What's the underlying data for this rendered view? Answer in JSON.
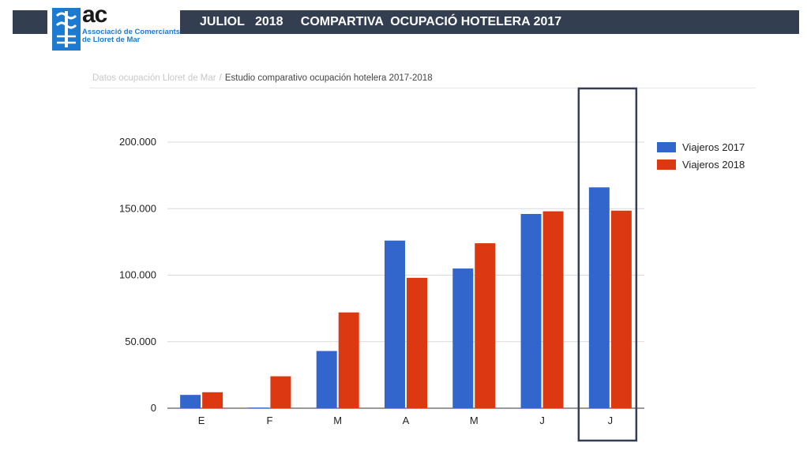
{
  "header": {
    "title": "JULIOL   2018     COMPARTIVA  OCUPACIÓ HOTELERA 2017",
    "logo_text": "ac",
    "logo_name": "Associació de Comerciants de Lloret de Mar"
  },
  "breadcrumb": {
    "previous": "Datos ocupación Lloret de Mar",
    "separator": "/",
    "current": "Estudio comparativo ocupación hotelera 2017-2018"
  },
  "colors": {
    "header_bg": "#333f50",
    "series_2017": "#3366cc",
    "series_2018": "#dc3912",
    "logo_blue": "#1c7ad0"
  },
  "chart_data": {
    "type": "bar",
    "categories": [
      "E",
      "F",
      "M",
      "A",
      "M",
      "J",
      "J"
    ],
    "series": [
      {
        "name": "Viajeros 2017",
        "values": [
          10000,
          500,
          43000,
          126000,
          105000,
          146000,
          166000
        ]
      },
      {
        "name": "Viajeros 2018",
        "values": [
          12000,
          24000,
          72000,
          98000,
          124000,
          148000,
          148500
        ]
      }
    ],
    "y_ticks": [
      "0",
      "50.000",
      "100.000",
      "150.000",
      "200.000"
    ],
    "y_tick_values": [
      0,
      50000,
      100000,
      150000,
      200000
    ],
    "ylim": [
      0,
      200000
    ],
    "grid": true,
    "legend": "right",
    "highlighted_category_index": 6
  }
}
